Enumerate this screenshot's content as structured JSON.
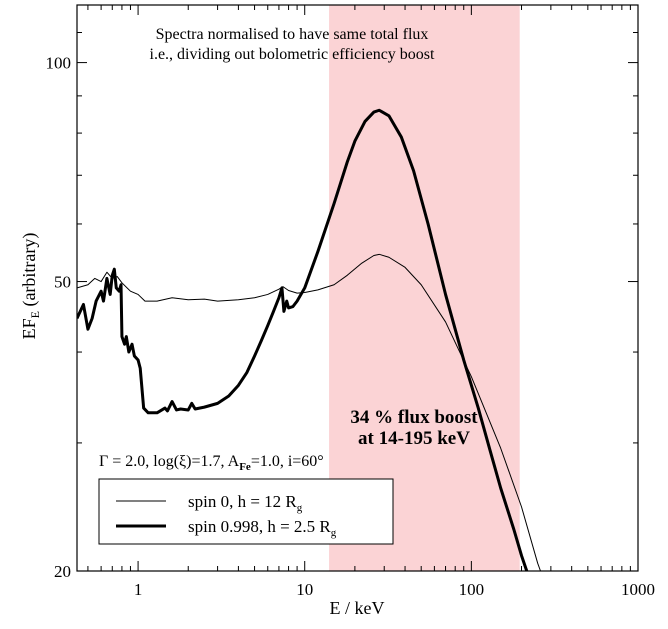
{
  "chart_data": {
    "type": "line",
    "x_scale": "log",
    "y_scale": "log",
    "xlim": [
      0.43,
      1000
    ],
    "ylim": [
      20,
      120
    ],
    "xlabel": "E / keV",
    "ylabel_main": "EF",
    "ylabel_sub": "E",
    "ylabel_rest": " (arbitrary)",
    "x_ticks": [
      {
        "value": 1,
        "label": "1"
      },
      {
        "value": 10,
        "label": "10"
      },
      {
        "value": 100,
        "label": "100"
      },
      {
        "value": 1000,
        "label": "1000"
      }
    ],
    "y_ticks": [
      {
        "value": 20,
        "label": "20"
      },
      {
        "value": 50,
        "label": "50"
      },
      {
        "value": 100,
        "label": "100"
      }
    ],
    "annotation_lines": [
      "Spectra normalised to have same total flux",
      "i.e., dividing out bolometric efficiency boost"
    ],
    "band": {
      "x_start": 14,
      "x_end": 195,
      "color": "#fbd3d5"
    },
    "band_label": [
      "34 % flux boost",
      "at 14-195 keV"
    ],
    "params_label": "Γ = 2.0, log(ξ)=1.7, A",
    "params_sub": "Fe",
    "params_tail": "=1.0, i=60°",
    "series": [
      {
        "name": "spin 0, h = 12 R",
        "name_sub": "g",
        "stroke_width": 1,
        "points": [
          [
            0.43,
            49
          ],
          [
            0.5,
            49.5
          ],
          [
            0.55,
            50.5
          ],
          [
            0.6,
            50
          ],
          [
            0.65,
            51.5
          ],
          [
            0.7,
            50.5
          ],
          [
            0.75,
            50.8
          ],
          [
            0.8,
            49.8
          ],
          [
            0.9,
            48.5
          ],
          [
            1.0,
            48
          ],
          [
            1.1,
            47
          ],
          [
            1.3,
            47
          ],
          [
            1.6,
            47.5
          ],
          [
            2,
            47.2
          ],
          [
            2.5,
            47.3
          ],
          [
            3,
            47
          ],
          [
            4,
            47.2
          ],
          [
            5,
            47.5
          ],
          [
            6,
            48
          ],
          [
            7,
            48.8
          ],
          [
            7.4,
            49.2
          ],
          [
            8,
            48.6
          ],
          [
            9,
            48.2
          ],
          [
            10,
            48.3
          ],
          [
            12,
            48.7
          ],
          [
            15,
            49.5
          ],
          [
            18,
            51
          ],
          [
            22,
            53
          ],
          [
            26,
            54.3
          ],
          [
            28,
            54.5
          ],
          [
            32,
            54
          ],
          [
            40,
            52.3
          ],
          [
            50,
            49.5
          ],
          [
            70,
            44
          ],
          [
            100,
            37
          ],
          [
            150,
            29.5
          ],
          [
            200,
            24.5
          ],
          [
            250,
            20.5
          ],
          [
            260,
            20
          ]
        ]
      },
      {
        "name": "spin 0.998, h = 2.5 R",
        "name_sub": "g",
        "stroke_width": 3,
        "points": [
          [
            0.43,
            44.5
          ],
          [
            0.47,
            46.5
          ],
          [
            0.5,
            43
          ],
          [
            0.53,
            44.5
          ],
          [
            0.56,
            47
          ],
          [
            0.6,
            48.5
          ],
          [
            0.62,
            47
          ],
          [
            0.65,
            50.5
          ],
          [
            0.68,
            48
          ],
          [
            0.7,
            51
          ],
          [
            0.72,
            52
          ],
          [
            0.74,
            49
          ],
          [
            0.77,
            48.5
          ],
          [
            0.79,
            49.5
          ],
          [
            0.8,
            42
          ],
          [
            0.83,
            41
          ],
          [
            0.85,
            42
          ],
          [
            0.88,
            40
          ],
          [
            0.92,
            41
          ],
          [
            0.95,
            39.5
          ],
          [
            1.0,
            39
          ],
          [
            1.03,
            38
          ],
          [
            1.08,
            33.5
          ],
          [
            1.15,
            33
          ],
          [
            1.3,
            33
          ],
          [
            1.45,
            33.5
          ],
          [
            1.5,
            33.2
          ],
          [
            1.6,
            34.2
          ],
          [
            1.7,
            33.3
          ],
          [
            1.8,
            33.4
          ],
          [
            2.0,
            33.3
          ],
          [
            2.1,
            34
          ],
          [
            2.2,
            33.4
          ],
          [
            2.5,
            33.6
          ],
          [
            3,
            34
          ],
          [
            3.5,
            34.8
          ],
          [
            4,
            36
          ],
          [
            4.5,
            37.5
          ],
          [
            5,
            39.5
          ],
          [
            5.5,
            41.5
          ],
          [
            6,
            43.5
          ],
          [
            6.5,
            45.5
          ],
          [
            7,
            47.5
          ],
          [
            7.3,
            49
          ],
          [
            7.5,
            45.5
          ],
          [
            7.8,
            47
          ],
          [
            8,
            46
          ],
          [
            8.5,
            46.2
          ],
          [
            9,
            47
          ],
          [
            10,
            49
          ],
          [
            12,
            55
          ],
          [
            15,
            64
          ],
          [
            18,
            73
          ],
          [
            20,
            78
          ],
          [
            23,
            83
          ],
          [
            26,
            85.5
          ],
          [
            28,
            86
          ],
          [
            32,
            84.5
          ],
          [
            38,
            79
          ],
          [
            45,
            71
          ],
          [
            55,
            60
          ],
          [
            70,
            48
          ],
          [
            90,
            39
          ],
          [
            110,
            33.5
          ],
          [
            130,
            29.2
          ],
          [
            150,
            26
          ],
          [
            180,
            22.8
          ],
          [
            200,
            21
          ],
          [
            215,
            20
          ]
        ]
      }
    ]
  }
}
